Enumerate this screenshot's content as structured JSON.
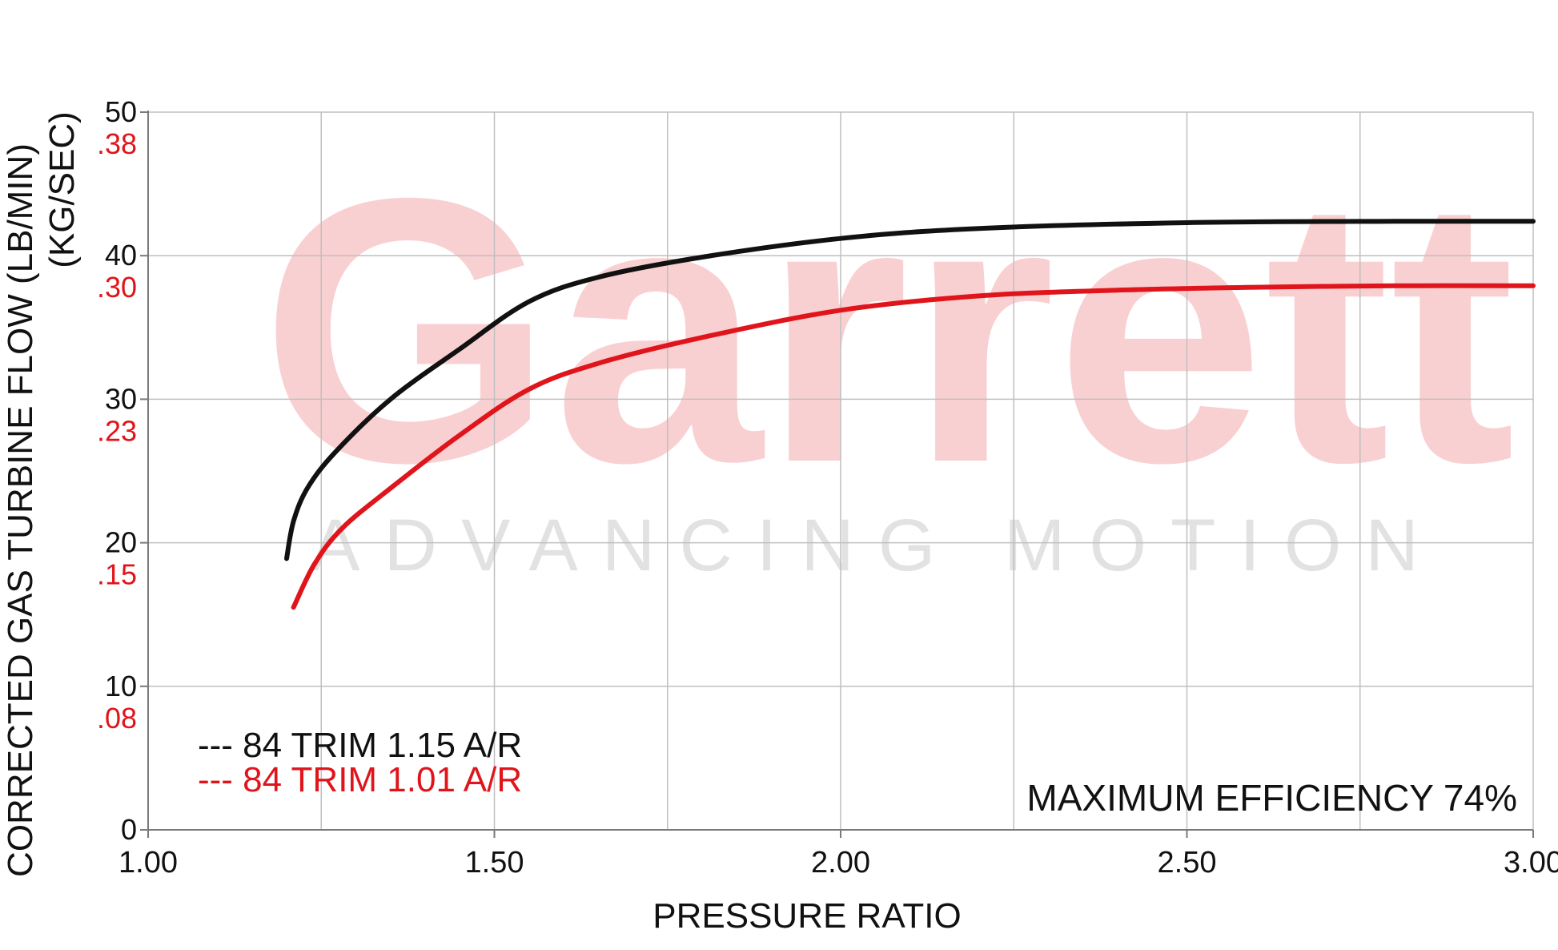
{
  "colors": {
    "grid": "#bfbfbf",
    "axis": "#7a7a7a",
    "text": "#111111",
    "secondary_axis": "#e0151b",
    "watermark_logo": "#f9d0d2",
    "watermark_tagline": "#e2e2e2"
  },
  "watermark": {
    "brand": "Garrett",
    "tagline": "ADVANCING MOTION"
  },
  "chart_data": {
    "type": "line",
    "xlabel": "PRESSURE RATIO",
    "ylabel": "CORRECTED GAS TURBINE FLOW (LB/MIN)",
    "ylabel_secondary": "(KG/SEC)",
    "xlim": [
      1.0,
      3.0
    ],
    "ylim": [
      0,
      50
    ],
    "grid": true,
    "x_ticks": [
      "1.00",
      "1.50",
      "2.00",
      "2.50",
      "3.00"
    ],
    "x_tick_values": [
      1.0,
      1.5,
      2.0,
      2.5,
      3.0
    ],
    "y_ticks": [
      "0",
      "10",
      "20",
      "30",
      "40",
      "50"
    ],
    "y_tick_values": [
      0,
      10,
      20,
      30,
      40,
      50
    ],
    "y_ticks_secondary": [
      ".08",
      ".15",
      ".23",
      ".30",
      ".38"
    ],
    "y_tick_secondary_values": [
      10,
      20,
      30,
      40,
      50
    ],
    "legend_position": "bottom-left",
    "annotation": "MAXIMUM EFFICIENCY 74%",
    "series": [
      {
        "name": "84 TRIM 1.15 A/R",
        "legend_label": "--- 84 TRIM 1.15 A/R",
        "color": "#111111",
        "x": [
          1.2,
          1.21,
          1.23,
          1.27,
          1.35,
          1.45,
          1.55,
          1.65,
          1.8,
          2.0,
          2.2,
          2.5,
          2.8,
          3.0
        ],
        "y": [
          18.9,
          21.5,
          23.8,
          26.3,
          30.0,
          33.5,
          36.8,
          38.5,
          39.9,
          41.2,
          41.9,
          42.3,
          42.4,
          42.4
        ]
      },
      {
        "name": "84 TRIM 1.01 A/R",
        "legend_label": "--- 84 TRIM 1.01 A/R",
        "color": "#e0151b",
        "x": [
          1.21,
          1.24,
          1.28,
          1.35,
          1.45,
          1.55,
          1.65,
          1.8,
          2.0,
          2.2,
          2.4,
          2.6,
          2.8,
          3.0
        ],
        "y": [
          15.5,
          18.5,
          21.0,
          23.8,
          27.5,
          30.7,
          32.5,
          34.3,
          36.2,
          37.2,
          37.6,
          37.8,
          37.9,
          37.9
        ]
      }
    ]
  }
}
